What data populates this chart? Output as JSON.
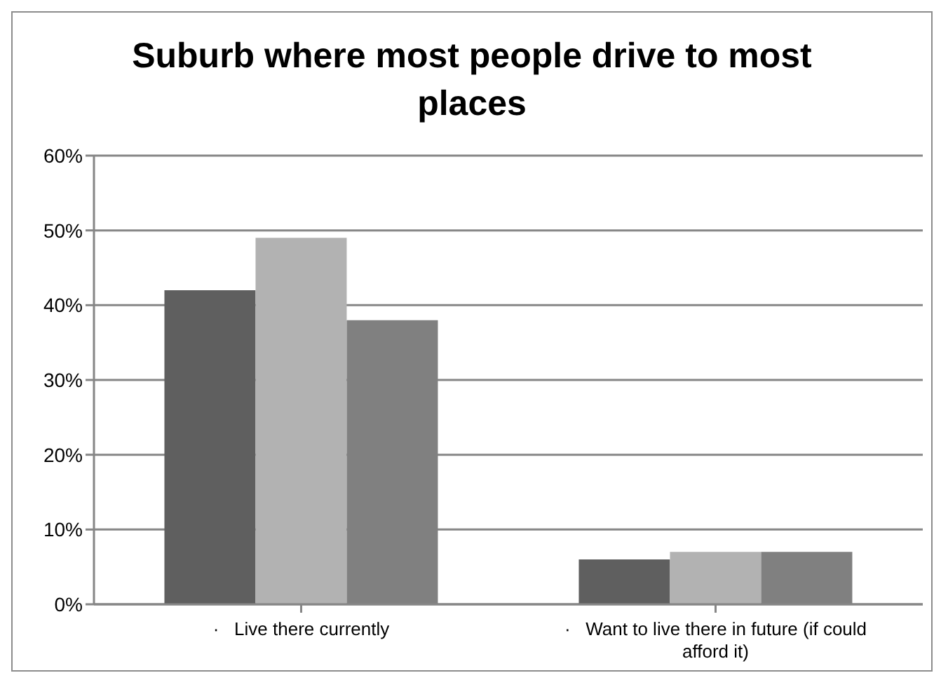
{
  "chart_data": {
    "type": "bar",
    "title": "Suburb where most people drive to most places",
    "categories": [
      "·   Live there currently",
      "·   Want to live there in future (if could afford it)"
    ],
    "series": [
      {
        "color": "#5f5f5f",
        "values": [
          42,
          6
        ]
      },
      {
        "color": "#b2b2b2",
        "values": [
          49,
          7
        ]
      },
      {
        "color": "#808080",
        "values": [
          38,
          7
        ]
      }
    ],
    "ylim": [
      0,
      60
    ],
    "yticks": [
      {
        "value": 0,
        "label": "0%"
      },
      {
        "value": 10,
        "label": "10%"
      },
      {
        "value": 20,
        "label": "20%"
      },
      {
        "value": 30,
        "label": "30%"
      },
      {
        "value": 40,
        "label": "40%"
      },
      {
        "value": 50,
        "label": "50%"
      },
      {
        "value": 60,
        "label": "60%"
      }
    ],
    "grid": "y",
    "legend": false
  }
}
